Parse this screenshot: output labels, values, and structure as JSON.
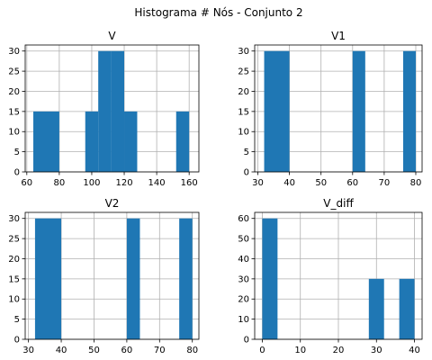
{
  "title": "Histograma # Nós - Conjunto 2",
  "chart_data": [
    {
      "type": "bar",
      "title": "V",
      "xticks": [
        60,
        80,
        100,
        120,
        140,
        160
      ],
      "yticks": [
        0,
        5,
        10,
        15,
        20,
        25,
        30
      ],
      "xlim": [
        59,
        166
      ],
      "ylim": [
        0,
        31.5
      ],
      "bins": [
        {
          "x0": 64,
          "x1": 80,
          "count": 15
        },
        {
          "x0": 96,
          "x1": 104,
          "count": 15
        },
        {
          "x0": 104,
          "x1": 112,
          "count": 30
        },
        {
          "x0": 112,
          "x1": 120,
          "count": 30
        },
        {
          "x0": 120,
          "x1": 128,
          "count": 15
        },
        {
          "x0": 152,
          "x1": 160,
          "count": 15
        }
      ],
      "color": "#1f77b4",
      "grid": true
    },
    {
      "type": "bar",
      "title": "V1",
      "xticks": [
        30,
        40,
        50,
        60,
        70,
        80
      ],
      "yticks": [
        0,
        5,
        10,
        15,
        20,
        25,
        30
      ],
      "xlim": [
        29,
        82
      ],
      "ylim": [
        0,
        31.5
      ],
      "bins": [
        {
          "x0": 32,
          "x1": 40,
          "count": 30
        },
        {
          "x0": 60,
          "x1": 64,
          "count": 30
        },
        {
          "x0": 76,
          "x1": 80,
          "count": 30
        }
      ],
      "color": "#1f77b4",
      "grid": true
    },
    {
      "type": "bar",
      "title": "V2",
      "xticks": [
        30,
        40,
        50,
        60,
        70,
        80
      ],
      "yticks": [
        0,
        5,
        10,
        15,
        20,
        25,
        30
      ],
      "xlim": [
        29,
        82
      ],
      "ylim": [
        0,
        31.5
      ],
      "bins": [
        {
          "x0": 32,
          "x1": 40,
          "count": 30
        },
        {
          "x0": 60,
          "x1": 64,
          "count": 30
        },
        {
          "x0": 76,
          "x1": 80,
          "count": 30
        }
      ],
      "color": "#1f77b4",
      "grid": true
    },
    {
      "type": "bar",
      "title": "V_diff",
      "xticks": [
        0,
        10,
        20,
        30,
        40
      ],
      "yticks": [
        0,
        10,
        20,
        30,
        40,
        50,
        60
      ],
      "xlim": [
        -2,
        42
      ],
      "ylim": [
        0,
        63
      ],
      "bins": [
        {
          "x0": 0,
          "x1": 4,
          "count": 60
        },
        {
          "x0": 28,
          "x1": 32,
          "count": 30
        },
        {
          "x0": 36,
          "x1": 40,
          "count": 30
        }
      ],
      "color": "#1f77b4",
      "grid": true
    }
  ]
}
